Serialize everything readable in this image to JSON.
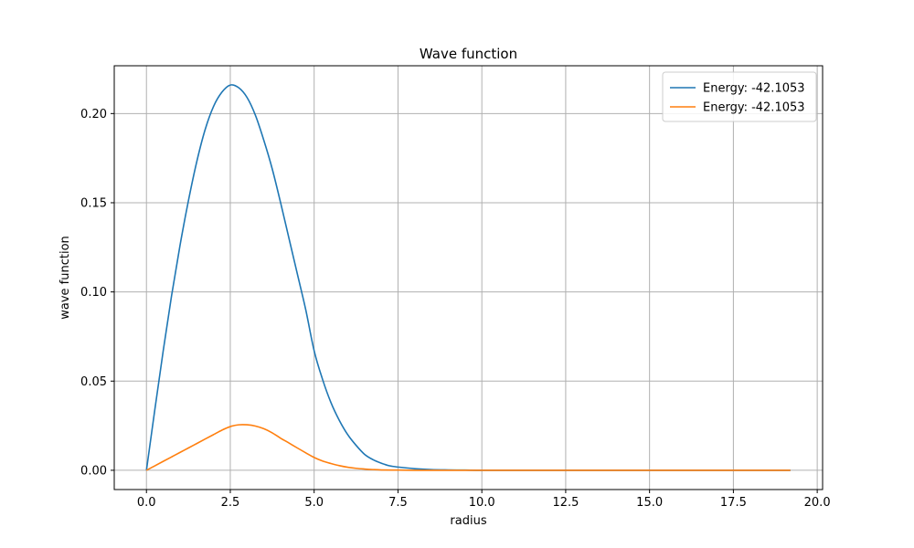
{
  "chart_data": {
    "type": "line",
    "title": "Wave function",
    "xlabel": "radius",
    "ylabel": "wave function",
    "xlim": [
      -0.96,
      20.16
    ],
    "ylim": [
      -0.0108,
      0.2268
    ],
    "xticks": [
      0.0,
      2.5,
      5.0,
      7.5,
      10.0,
      12.5,
      15.0,
      17.5,
      20.0
    ],
    "xtick_labels": [
      "0.0",
      "2.5",
      "5.0",
      "7.5",
      "10.0",
      "12.5",
      "15.0",
      "17.5",
      "20.0"
    ],
    "yticks": [
      0.0,
      0.05,
      0.1,
      0.15,
      0.2
    ],
    "ytick_labels": [
      "0.00",
      "0.05",
      "0.10",
      "0.15",
      "0.20"
    ],
    "grid": true,
    "legend_position": "top-right",
    "series": [
      {
        "name": "Energy: -42.1053",
        "color": "#1f77b4",
        "x": [
          0.0,
          0.25,
          0.5,
          0.75,
          1.0,
          1.25,
          1.5,
          1.75,
          2.0,
          2.25,
          2.5,
          2.75,
          3.0,
          3.25,
          3.5,
          3.75,
          4.0,
          4.25,
          4.5,
          4.75,
          5.0,
          5.25,
          5.5,
          5.75,
          6.0,
          6.25,
          6.5,
          6.75,
          7.0,
          7.25,
          7.5,
          8.0,
          8.5,
          9.0,
          9.5,
          10.0,
          11.0,
          12.0,
          13.0,
          14.0,
          15.0,
          16.0,
          17.0,
          18.0,
          19.2
        ],
        "values": [
          0.0,
          0.034,
          0.067,
          0.098,
          0.126,
          0.151,
          0.173,
          0.191,
          0.204,
          0.212,
          0.216,
          0.2145,
          0.209,
          0.199,
          0.185,
          0.169,
          0.15,
          0.13,
          0.11,
          0.09,
          0.067,
          0.051,
          0.038,
          0.028,
          0.02,
          0.014,
          0.009,
          0.006,
          0.004,
          0.0025,
          0.0018,
          0.0009,
          0.0004,
          0.0002,
          0.0001,
          0.0,
          0.0,
          0.0,
          0.0,
          0.0,
          0.0,
          0.0,
          0.0,
          0.0,
          0.0
        ]
      },
      {
        "name": "Energy: -42.1053",
        "color": "#ff7f0e",
        "x": [
          0.0,
          0.25,
          0.5,
          0.75,
          1.0,
          1.25,
          1.5,
          1.75,
          2.0,
          2.25,
          2.5,
          2.75,
          3.0,
          3.25,
          3.5,
          3.75,
          4.0,
          4.25,
          4.5,
          4.75,
          5.0,
          5.25,
          5.5,
          5.75,
          6.0,
          6.25,
          6.5,
          6.75,
          7.0,
          7.5,
          8.0,
          8.5,
          9.0,
          10.0,
          12.0,
          14.0,
          16.0,
          18.0,
          19.2
        ],
        "values": [
          0.0,
          0.0025,
          0.005,
          0.0075,
          0.01,
          0.0125,
          0.015,
          0.0175,
          0.02,
          0.0225,
          0.0245,
          0.0255,
          0.0255,
          0.0248,
          0.0233,
          0.021,
          0.018,
          0.0153,
          0.0125,
          0.0098,
          0.0072,
          0.0052,
          0.0038,
          0.0026,
          0.0017,
          0.0011,
          0.0007,
          0.0004,
          0.0002,
          0.0001,
          0.0,
          0.0,
          0.0,
          0.0,
          0.0,
          0.0,
          0.0,
          0.0,
          0.0
        ]
      }
    ]
  }
}
